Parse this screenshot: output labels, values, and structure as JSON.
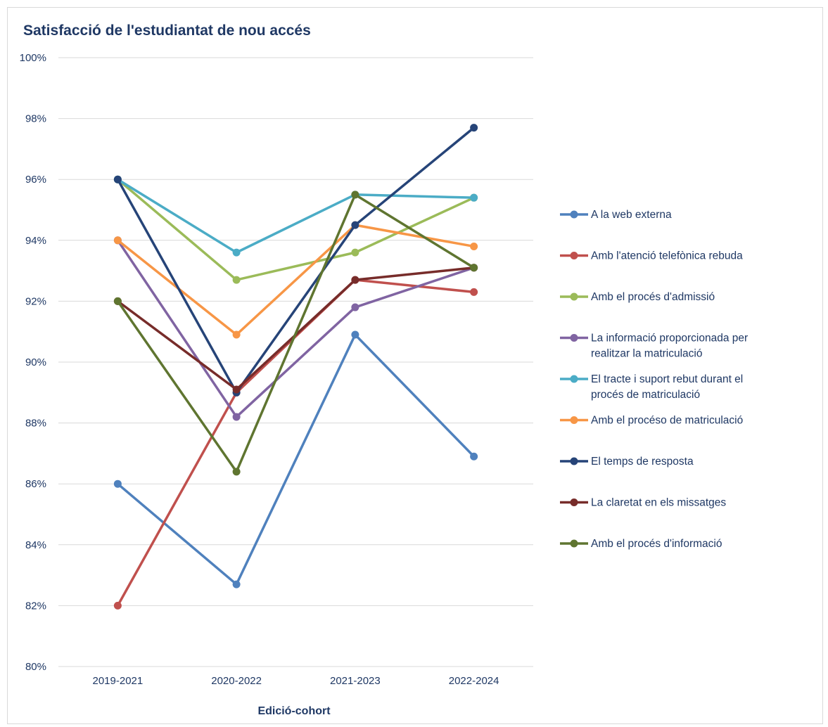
{
  "chart_data": {
    "type": "line",
    "title": "Satisfacció de l'estudiantat de nou accés",
    "xlabel": "Edició-cohort",
    "ylabel": "",
    "categories": [
      "2019-2021",
      "2020-2022",
      "2021-2023",
      "2022-2024"
    ],
    "ylim": [
      80,
      100
    ],
    "y_ticks": [
      80,
      82,
      84,
      86,
      88,
      90,
      92,
      94,
      96,
      98,
      100
    ],
    "y_tick_labels": [
      "80%",
      "82%",
      "84%",
      "86%",
      "88%",
      "90%",
      "92%",
      "94%",
      "96%",
      "98%",
      "100%"
    ],
    "grid": "horizontal",
    "legend_position": "right",
    "series": [
      {
        "name": "A la web externa",
        "color": "#4f81bd",
        "values": [
          86.0,
          82.7,
          90.9,
          86.9
        ]
      },
      {
        "name": "Amb l'atenció telefònica rebuda",
        "color": "#c0504d",
        "values": [
          82.0,
          89.0,
          92.7,
          92.3
        ]
      },
      {
        "name": "Amb el procés d'admissió",
        "color": "#9bbb59",
        "values": [
          96.0,
          92.7,
          93.6,
          95.4
        ]
      },
      {
        "name": "La informació proporcionada per realitzar la matriculació",
        "color": "#8064a2",
        "values": [
          94.0,
          88.2,
          91.8,
          93.1
        ]
      },
      {
        "name": "El tracte i suport rebut durant el procés de matriculació",
        "color": "#4bacc6",
        "values": [
          96.0,
          93.6,
          95.5,
          95.4
        ]
      },
      {
        "name": "Amb el procéso de matriculació",
        "color": "#f79646",
        "values": [
          94.0,
          90.9,
          94.5,
          93.8
        ]
      },
      {
        "name": "El temps de resposta",
        "color": "#264478",
        "values": [
          96.0,
          89.0,
          94.5,
          97.7
        ]
      },
      {
        "name": "La claretat en els missatges",
        "color": "#772c2a",
        "values": [
          92.0,
          89.1,
          92.7,
          93.1
        ]
      },
      {
        "name": "Amb el procés d'informació",
        "color": "#5f7530",
        "values": [
          92.0,
          86.4,
          95.5,
          93.1
        ]
      }
    ]
  }
}
